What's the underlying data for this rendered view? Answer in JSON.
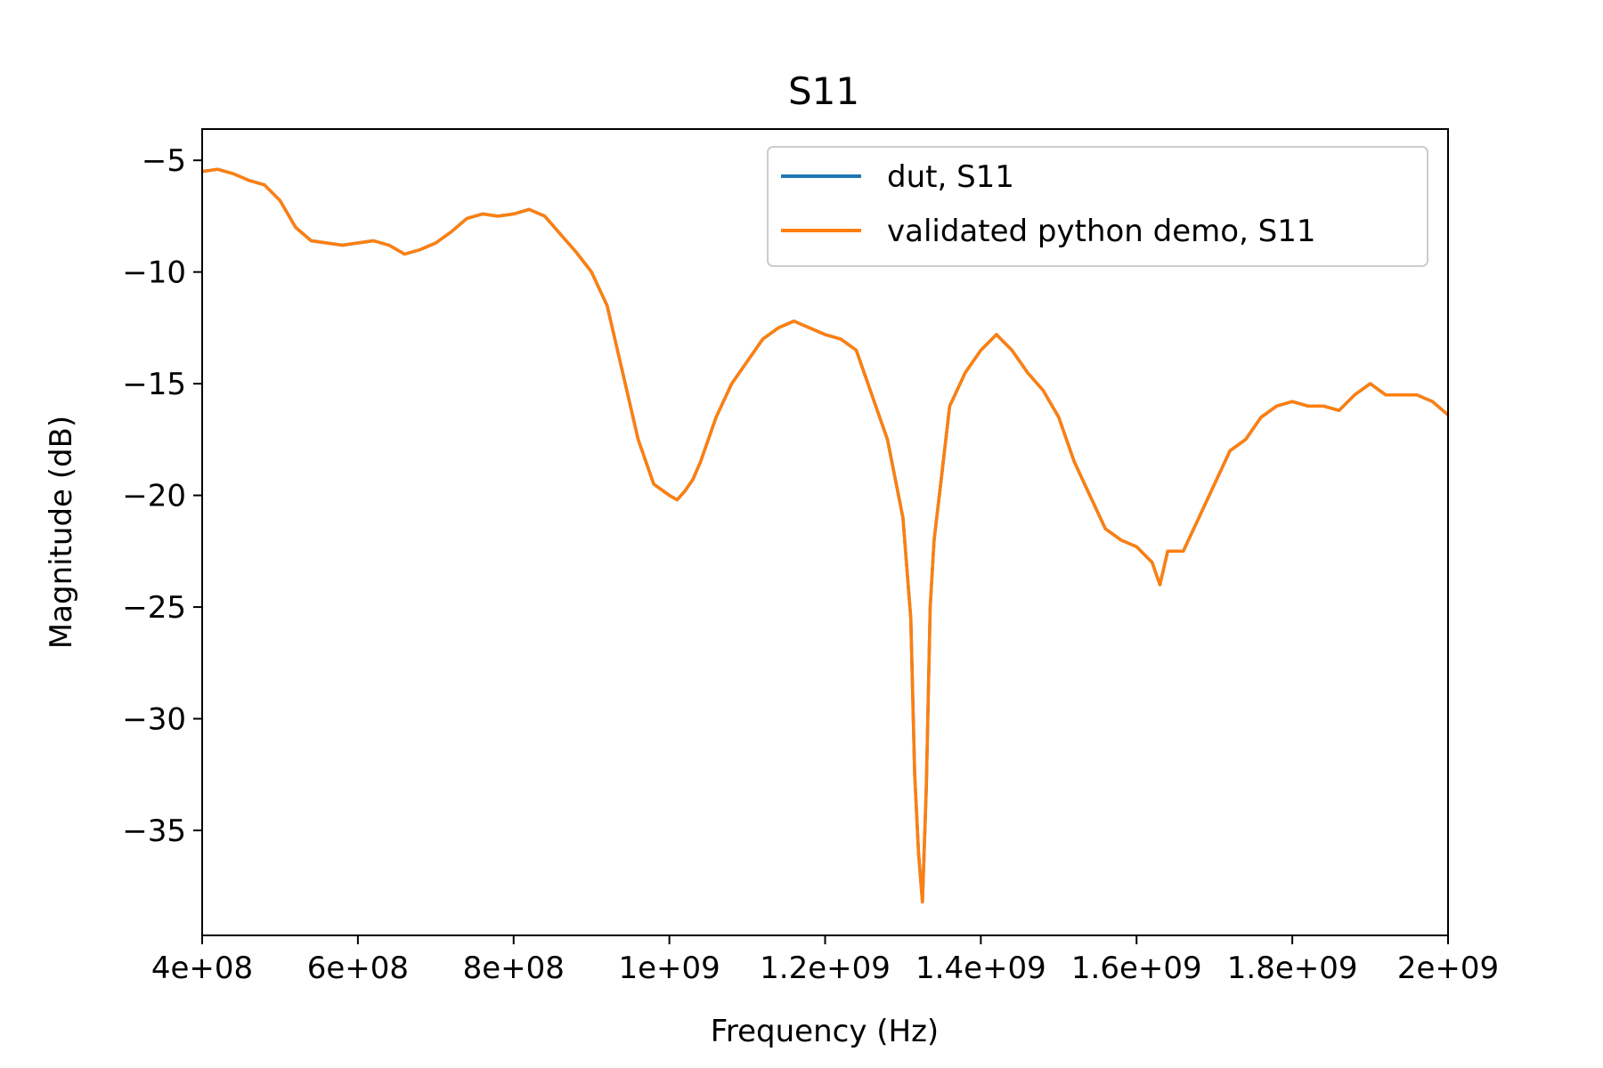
{
  "chart_data": {
    "type": "line",
    "title": "S11",
    "xlabel": "Frequency (Hz)",
    "ylabel": "Magnitude (dB)",
    "xlim": [
      400000000,
      2000000000
    ],
    "ylim": [
      -39.7,
      -3.6
    ],
    "x_ticks": [
      400000000,
      600000000,
      800000000,
      1000000000,
      1200000000,
      1400000000,
      1600000000,
      1800000000,
      2000000000
    ],
    "x_tick_labels": [
      "4e+08",
      "6e+08",
      "8e+08",
      "1e+09",
      "1.2e+09",
      "1.4e+09",
      "1.6e+09",
      "1.8e+09",
      "2e+09"
    ],
    "y_ticks": [
      -35,
      -30,
      -25,
      -20,
      -15,
      -10,
      -5
    ],
    "y_tick_labels": [
      "−35",
      "−30",
      "−25",
      "−20",
      "−15",
      "−10",
      "−5"
    ],
    "grid": false,
    "legend_position": "upper right",
    "x": [
      400000000,
      420000000,
      440000000,
      460000000,
      480000000,
      500000000,
      520000000,
      540000000,
      560000000,
      580000000,
      600000000,
      620000000,
      640000000,
      660000000,
      680000000,
      700000000,
      720000000,
      740000000,
      760000000,
      780000000,
      800000000,
      820000000,
      840000000,
      860000000,
      880000000,
      900000000,
      920000000,
      940000000,
      960000000,
      980000000,
      1000000000,
      1010000000,
      1020000000,
      1030000000,
      1040000000,
      1060000000,
      1080000000,
      1100000000,
      1120000000,
      1140000000,
      1160000000,
      1180000000,
      1200000000,
      1220000000,
      1240000000,
      1260000000,
      1280000000,
      1300000000,
      1310000000,
      1315000000,
      1320000000,
      1325000000,
      1330000000,
      1335000000,
      1340000000,
      1350000000,
      1360000000,
      1380000000,
      1400000000,
      1420000000,
      1440000000,
      1460000000,
      1480000000,
      1500000000,
      1520000000,
      1540000000,
      1560000000,
      1580000000,
      1600000000,
      1620000000,
      1630000000,
      1640000000,
      1660000000,
      1680000000,
      1700000000,
      1720000000,
      1740000000,
      1760000000,
      1780000000,
      1800000000,
      1820000000,
      1840000000,
      1860000000,
      1880000000,
      1900000000,
      1920000000,
      1940000000,
      1960000000,
      1980000000,
      2000000000
    ],
    "series": [
      {
        "name": "dut, S11",
        "color": "#1f77b4",
        "y": [
          -5.5,
          -5.4,
          -5.6,
          -5.9,
          -6.1,
          -6.8,
          -8.0,
          -8.6,
          -8.7,
          -8.8,
          -8.7,
          -8.6,
          -8.8,
          -9.2,
          -9.0,
          -8.7,
          -8.2,
          -7.6,
          -7.4,
          -7.5,
          -7.4,
          -7.2,
          -7.5,
          -8.3,
          -9.1,
          -10.0,
          -11.5,
          -14.5,
          -17.5,
          -19.5,
          -20.0,
          -20.2,
          -19.8,
          -19.3,
          -18.5,
          -16.5,
          -15.0,
          -14.0,
          -13.0,
          -12.5,
          -12.2,
          -12.5,
          -12.8,
          -13.0,
          -13.5,
          -15.5,
          -17.5,
          -21.0,
          -25.5,
          -32.5,
          -36.0,
          -38.2,
          -33.0,
          -25.0,
          -22.0,
          -19.0,
          -16.0,
          -14.5,
          -13.5,
          -12.8,
          -13.5,
          -14.5,
          -15.3,
          -16.5,
          -18.5,
          -20.0,
          -21.5,
          -22.0,
          -22.3,
          -23.0,
          -24.0,
          -22.5,
          -22.5,
          -21.0,
          -19.5,
          -18.0,
          -17.5,
          -16.5,
          -16.0,
          -15.8,
          -16.0,
          -16.0,
          -16.2,
          -15.5,
          -15.0,
          -15.5,
          -15.5,
          -15.5,
          -15.8,
          -16.4
        ]
      },
      {
        "name": "validated python demo, S11",
        "color": "#ff7f0e",
        "y": [
          -5.5,
          -5.4,
          -5.6,
          -5.9,
          -6.1,
          -6.8,
          -8.0,
          -8.6,
          -8.7,
          -8.8,
          -8.7,
          -8.6,
          -8.8,
          -9.2,
          -9.0,
          -8.7,
          -8.2,
          -7.6,
          -7.4,
          -7.5,
          -7.4,
          -7.2,
          -7.5,
          -8.3,
          -9.1,
          -10.0,
          -11.5,
          -14.5,
          -17.5,
          -19.5,
          -20.0,
          -20.2,
          -19.8,
          -19.3,
          -18.5,
          -16.5,
          -15.0,
          -14.0,
          -13.0,
          -12.5,
          -12.2,
          -12.5,
          -12.8,
          -13.0,
          -13.5,
          -15.5,
          -17.5,
          -21.0,
          -25.5,
          -32.5,
          -36.0,
          -38.2,
          -33.0,
          -25.0,
          -22.0,
          -19.0,
          -16.0,
          -14.5,
          -13.5,
          -12.8,
          -13.5,
          -14.5,
          -15.3,
          -16.5,
          -18.5,
          -20.0,
          -21.5,
          -22.0,
          -22.3,
          -23.0,
          -24.0,
          -22.5,
          -22.5,
          -21.0,
          -19.5,
          -18.0,
          -17.5,
          -16.5,
          -16.0,
          -15.8,
          -16.0,
          -16.0,
          -16.2,
          -15.5,
          -15.0,
          -15.5,
          -15.5,
          -15.5,
          -15.8,
          -16.4
        ]
      }
    ]
  }
}
